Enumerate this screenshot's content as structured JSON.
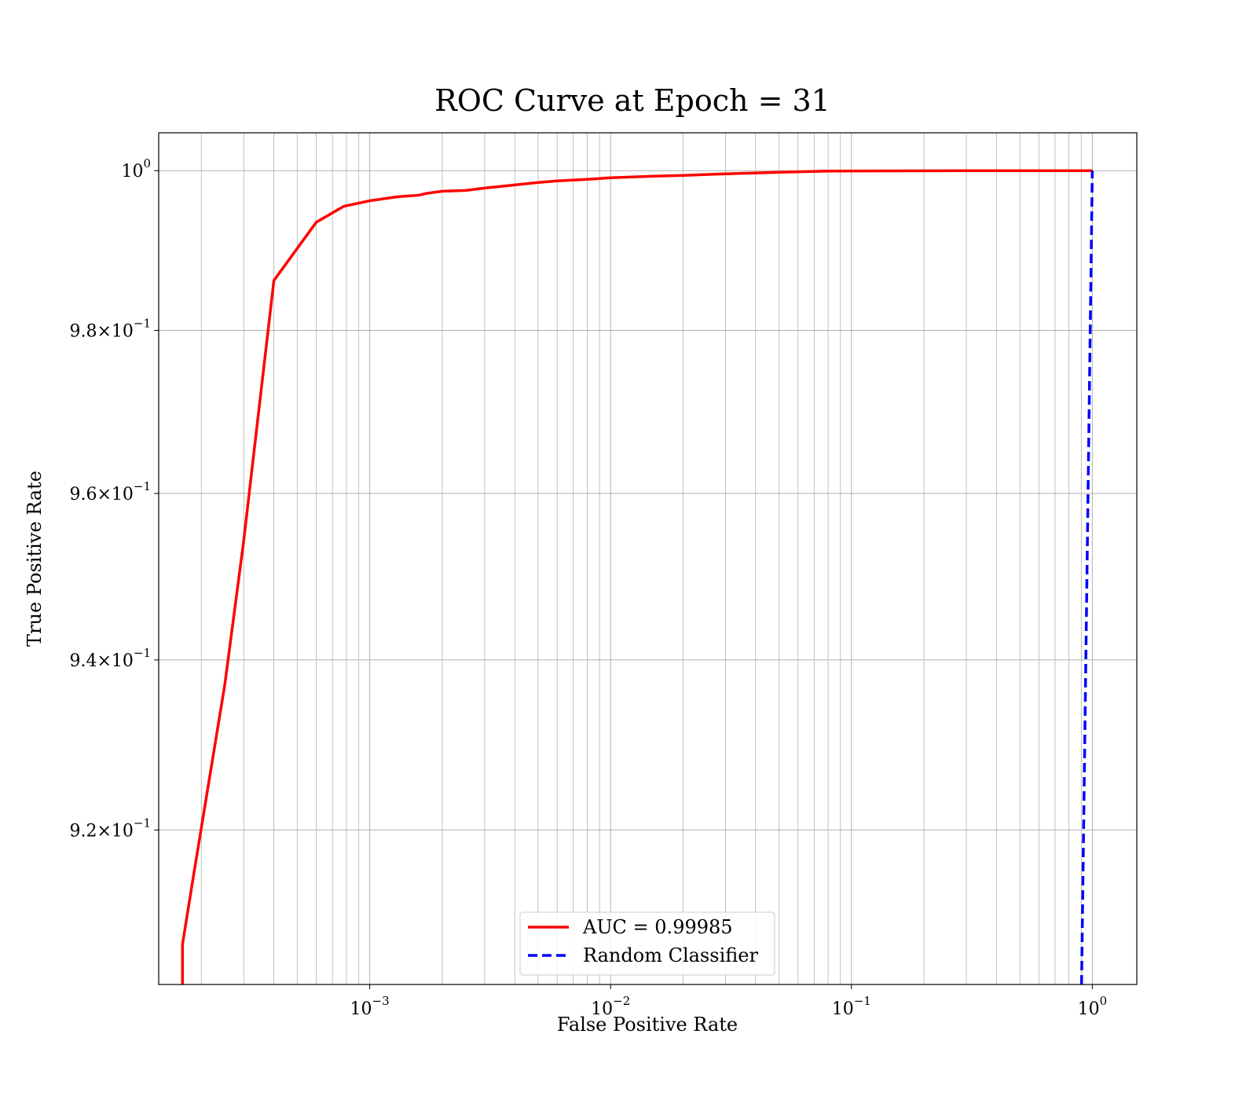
{
  "chart_data": {
    "type": "line",
    "title": "ROC Curve at Epoch = 31",
    "xlabel": "False Positive Rate",
    "ylabel": "True Positive Rate",
    "xscale": "log",
    "yscale": "log",
    "xlim": [
      0.000133,
      1.53
    ],
    "ylim": [
      0.9022,
      1.0048
    ],
    "grid": "both",
    "legend_position": "bottom-center",
    "x_ticks": [
      {
        "value": 0.001,
        "base": "10",
        "exp": "−3"
      },
      {
        "value": 0.01,
        "base": "10",
        "exp": "−2"
      },
      {
        "value": 0.1,
        "base": "10",
        "exp": "−1"
      },
      {
        "value": 1,
        "base": "10",
        "exp": "0"
      }
    ],
    "y_ticks": [
      {
        "value": 0.92,
        "mant": "9.2",
        "exp": "−1"
      },
      {
        "value": 0.94,
        "mant": "9.4",
        "exp": "−1"
      },
      {
        "value": 0.96,
        "mant": "9.6",
        "exp": "−1"
      },
      {
        "value": 0.98,
        "mant": "9.8",
        "exp": "−1"
      },
      {
        "value": 1.0,
        "mant": "10",
        "exp": "0"
      }
    ],
    "series": [
      {
        "name": "AUC = 0.99985",
        "color": "#ff0000",
        "style": "solid",
        "x": [
          0.000167,
          0.000167,
          0.000185,
          0.00025,
          0.000299,
          0.0004,
          0.0006,
          0.00078,
          0.001,
          0.0013,
          0.0016,
          0.0017,
          0.002,
          0.0025,
          0.003,
          0.004,
          0.005,
          0.006,
          0.008,
          0.01,
          0.015,
          0.02,
          0.03,
          0.05,
          0.08,
          0.15,
          0.3,
          0.6,
          1.0
        ],
        "y": [
          0.9022,
          0.9068,
          0.9145,
          0.937,
          0.954,
          0.9862,
          0.9935,
          0.9955,
          0.9962,
          0.9967,
          0.9969,
          0.9971,
          0.9974,
          0.9975,
          0.9978,
          0.9982,
          0.9985,
          0.9987,
          0.9989,
          0.9991,
          0.9993,
          0.9994,
          0.9996,
          0.9998,
          0.99995,
          0.99997,
          0.99999,
          1.0,
          1.0
        ]
      },
      {
        "name": "Random Classifier",
        "color": "#0000ff",
        "style": "dashed",
        "x": [
          0.9022,
          1.0
        ],
        "y": [
          0.9022,
          1.0
        ]
      }
    ]
  }
}
